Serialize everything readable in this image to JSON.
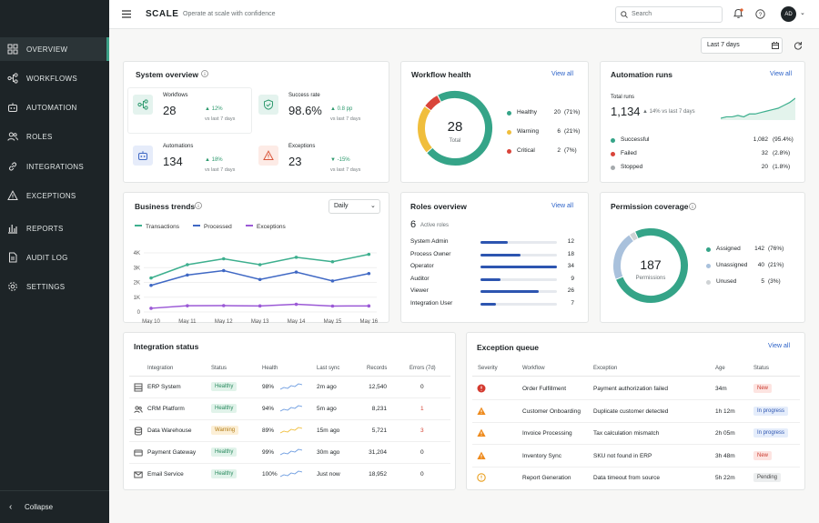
{
  "app": {
    "title": "SCALE",
    "tagline": "Operate at scale with confidence",
    "search_placeholder": "Search",
    "avatar": "AD"
  },
  "sidebar": {
    "items": [
      {
        "label": "OVERVIEW",
        "icon": "grid-icon"
      },
      {
        "label": "WORKFLOWS",
        "icon": "workflow-icon"
      },
      {
        "label": "AUTOMATION",
        "icon": "robot-icon"
      },
      {
        "label": "ROLES",
        "icon": "users-icon"
      },
      {
        "label": "INTEGRATIONS",
        "icon": "link-icon"
      },
      {
        "label": "EXCEPTIONS",
        "icon": "warning-icon"
      },
      {
        "label": "REPORTS",
        "icon": "bar-chart-icon"
      },
      {
        "label": "AUDIT LOG",
        "icon": "document-icon"
      },
      {
        "label": "SETTINGS",
        "icon": "gear-icon"
      }
    ],
    "collapse": "Collapse"
  },
  "filter": {
    "date_range": "Last 7 days"
  },
  "system_overview": {
    "title": "System overview",
    "metrics": [
      {
        "label": "Workflows",
        "value": "28",
        "delta": "▲ 12%",
        "sub": "vs last 7 days",
        "icon": "workflow-icon"
      },
      {
        "label": "Success rate",
        "value": "98.6%",
        "delta": "▲ 0.8 pp",
        "sub": "vs last 7 days",
        "icon": "shield-check-icon"
      },
      {
        "label": "Automations",
        "value": "134",
        "delta": "▲ 18%",
        "sub": "vs last 7 days",
        "icon": "robot-icon"
      },
      {
        "label": "Exceptions",
        "value": "23",
        "delta": "▼ -15%",
        "sub": "vs last 7 days",
        "icon": "warning-icon"
      }
    ]
  },
  "workflow_health": {
    "title": "Workflow health",
    "view_all": "View all",
    "total": "28",
    "total_label": "Total",
    "items": [
      {
        "label": "Healthy",
        "count": "20",
        "pct": "(71%)",
        "color": "#35a488"
      },
      {
        "label": "Warning",
        "count": "6",
        "pct": "(21%)",
        "color": "#f0be3c"
      },
      {
        "label": "Critical",
        "count": "2",
        "pct": "(7%)",
        "color": "#d9443a"
      }
    ]
  },
  "automation_runs": {
    "title": "Automation runs",
    "view_all": "View all",
    "total_label": "Total runs",
    "total": "1,134",
    "delta": "▲ 14% vs last 7 days",
    "items": [
      {
        "label": "Successful",
        "count": "1,082",
        "pct": "(95.4%)",
        "color": "#35a488"
      },
      {
        "label": "Failed",
        "count": "32",
        "pct": "(2.8%)",
        "color": "#d9443a"
      },
      {
        "label": "Stopped",
        "count": "20",
        "pct": "(1.8%)",
        "color": "#a5aaad"
      }
    ],
    "spark": [
      3,
      4,
      4,
      5,
      4,
      6,
      6,
      7,
      8,
      9,
      10,
      12,
      14,
      17
    ]
  },
  "business_trends": {
    "title": "Business trends",
    "period": "Daily",
    "chart_data": {
      "type": "line",
      "x": [
        "May 10",
        "May 11",
        "May 12",
        "May 13",
        "May 14",
        "May 15",
        "May 16"
      ],
      "yticks": [
        "4K",
        "3K",
        "2K",
        "1K",
        "0"
      ],
      "ylim": [
        0,
        4000
      ],
      "series": [
        {
          "name": "Transactions",
          "color": "#3daf8e",
          "values": [
            2300,
            3200,
            3600,
            3200,
            3700,
            3400,
            3900
          ]
        },
        {
          "name": "Processed",
          "color": "#3f68c4",
          "values": [
            1800,
            2500,
            2800,
            2200,
            2700,
            2100,
            2600
          ]
        },
        {
          "name": "Exceptions",
          "color": "#9b59d6",
          "values": [
            250,
            420,
            430,
            410,
            520,
            400,
            410
          ]
        }
      ]
    }
  },
  "roles_overview": {
    "title": "Roles overview",
    "view_all": "View all",
    "count": "6",
    "count_label": "Active roles",
    "roles": [
      {
        "name": "System Admin",
        "value": 12
      },
      {
        "name": "Process Owner",
        "value": 18
      },
      {
        "name": "Operator",
        "value": 34
      },
      {
        "name": "Auditor",
        "value": 9
      },
      {
        "name": "Viewer",
        "value": 26
      },
      {
        "name": "Integration User",
        "value": 7
      }
    ],
    "max": 34
  },
  "permission_coverage": {
    "title": "Permission coverage",
    "total": "187",
    "total_label": "Permissions",
    "items": [
      {
        "label": "Assigned",
        "count": "142",
        "pct": "(76%)",
        "color": "#35a488"
      },
      {
        "label": "Unassigned",
        "count": "40",
        "pct": "(21%)",
        "color": "#a9c1dc"
      },
      {
        "label": "Unused",
        "count": "5",
        "pct": "(3%)",
        "color": "#cfd3d5"
      }
    ]
  },
  "integration_status": {
    "title": "Integration status",
    "columns": [
      "Integration",
      "Status",
      "Health",
      "Last sync",
      "Records",
      "Errors (7d)"
    ],
    "rows": [
      {
        "name": "ERP System",
        "icon": "server-icon",
        "status": "Healthy",
        "health": "98%",
        "sync": "2m ago",
        "records": "12,540",
        "errors": "0"
      },
      {
        "name": "CRM Platform",
        "icon": "users-icon",
        "status": "Healthy",
        "health": "94%",
        "sync": "5m ago",
        "records": "8,231",
        "errors": "1"
      },
      {
        "name": "Data Warehouse",
        "icon": "database-icon",
        "status": "Warning",
        "health": "89%",
        "sync": "15m ago",
        "records": "5,721",
        "errors": "3"
      },
      {
        "name": "Payment Gateway",
        "icon": "card-icon",
        "status": "Healthy",
        "health": "99%",
        "sync": "30m ago",
        "records": "31,204",
        "errors": "0"
      },
      {
        "name": "Email Service",
        "icon": "mail-icon",
        "status": "Healthy",
        "health": "100%",
        "sync": "Just now",
        "records": "18,952",
        "errors": "0"
      }
    ]
  },
  "exception_queue": {
    "title": "Exception queue",
    "view_all": "View all",
    "columns": [
      "Severity",
      "Workflow",
      "Exception",
      "Age",
      "Status"
    ],
    "rows": [
      {
        "sev": "critical",
        "workflow": "Order Fulfillment",
        "exception": "Payment authorization failed",
        "age": "34m",
        "status": "New"
      },
      {
        "sev": "warning",
        "workflow": "Customer Onboarding",
        "exception": "Duplicate customer detected",
        "age": "1h 12m",
        "status": "In progress"
      },
      {
        "sev": "warning",
        "workflow": "Invoice Processing",
        "exception": "Tax calculation mismatch",
        "age": "2h 05m",
        "status": "In progress"
      },
      {
        "sev": "warning",
        "workflow": "Inventory Sync",
        "exception": "SKU not found in ERP",
        "age": "3h 48m",
        "status": "New"
      },
      {
        "sev": "info",
        "workflow": "Report Generation",
        "exception": "Data timeout from source",
        "age": "5h 22m",
        "status": "Pending"
      }
    ]
  }
}
